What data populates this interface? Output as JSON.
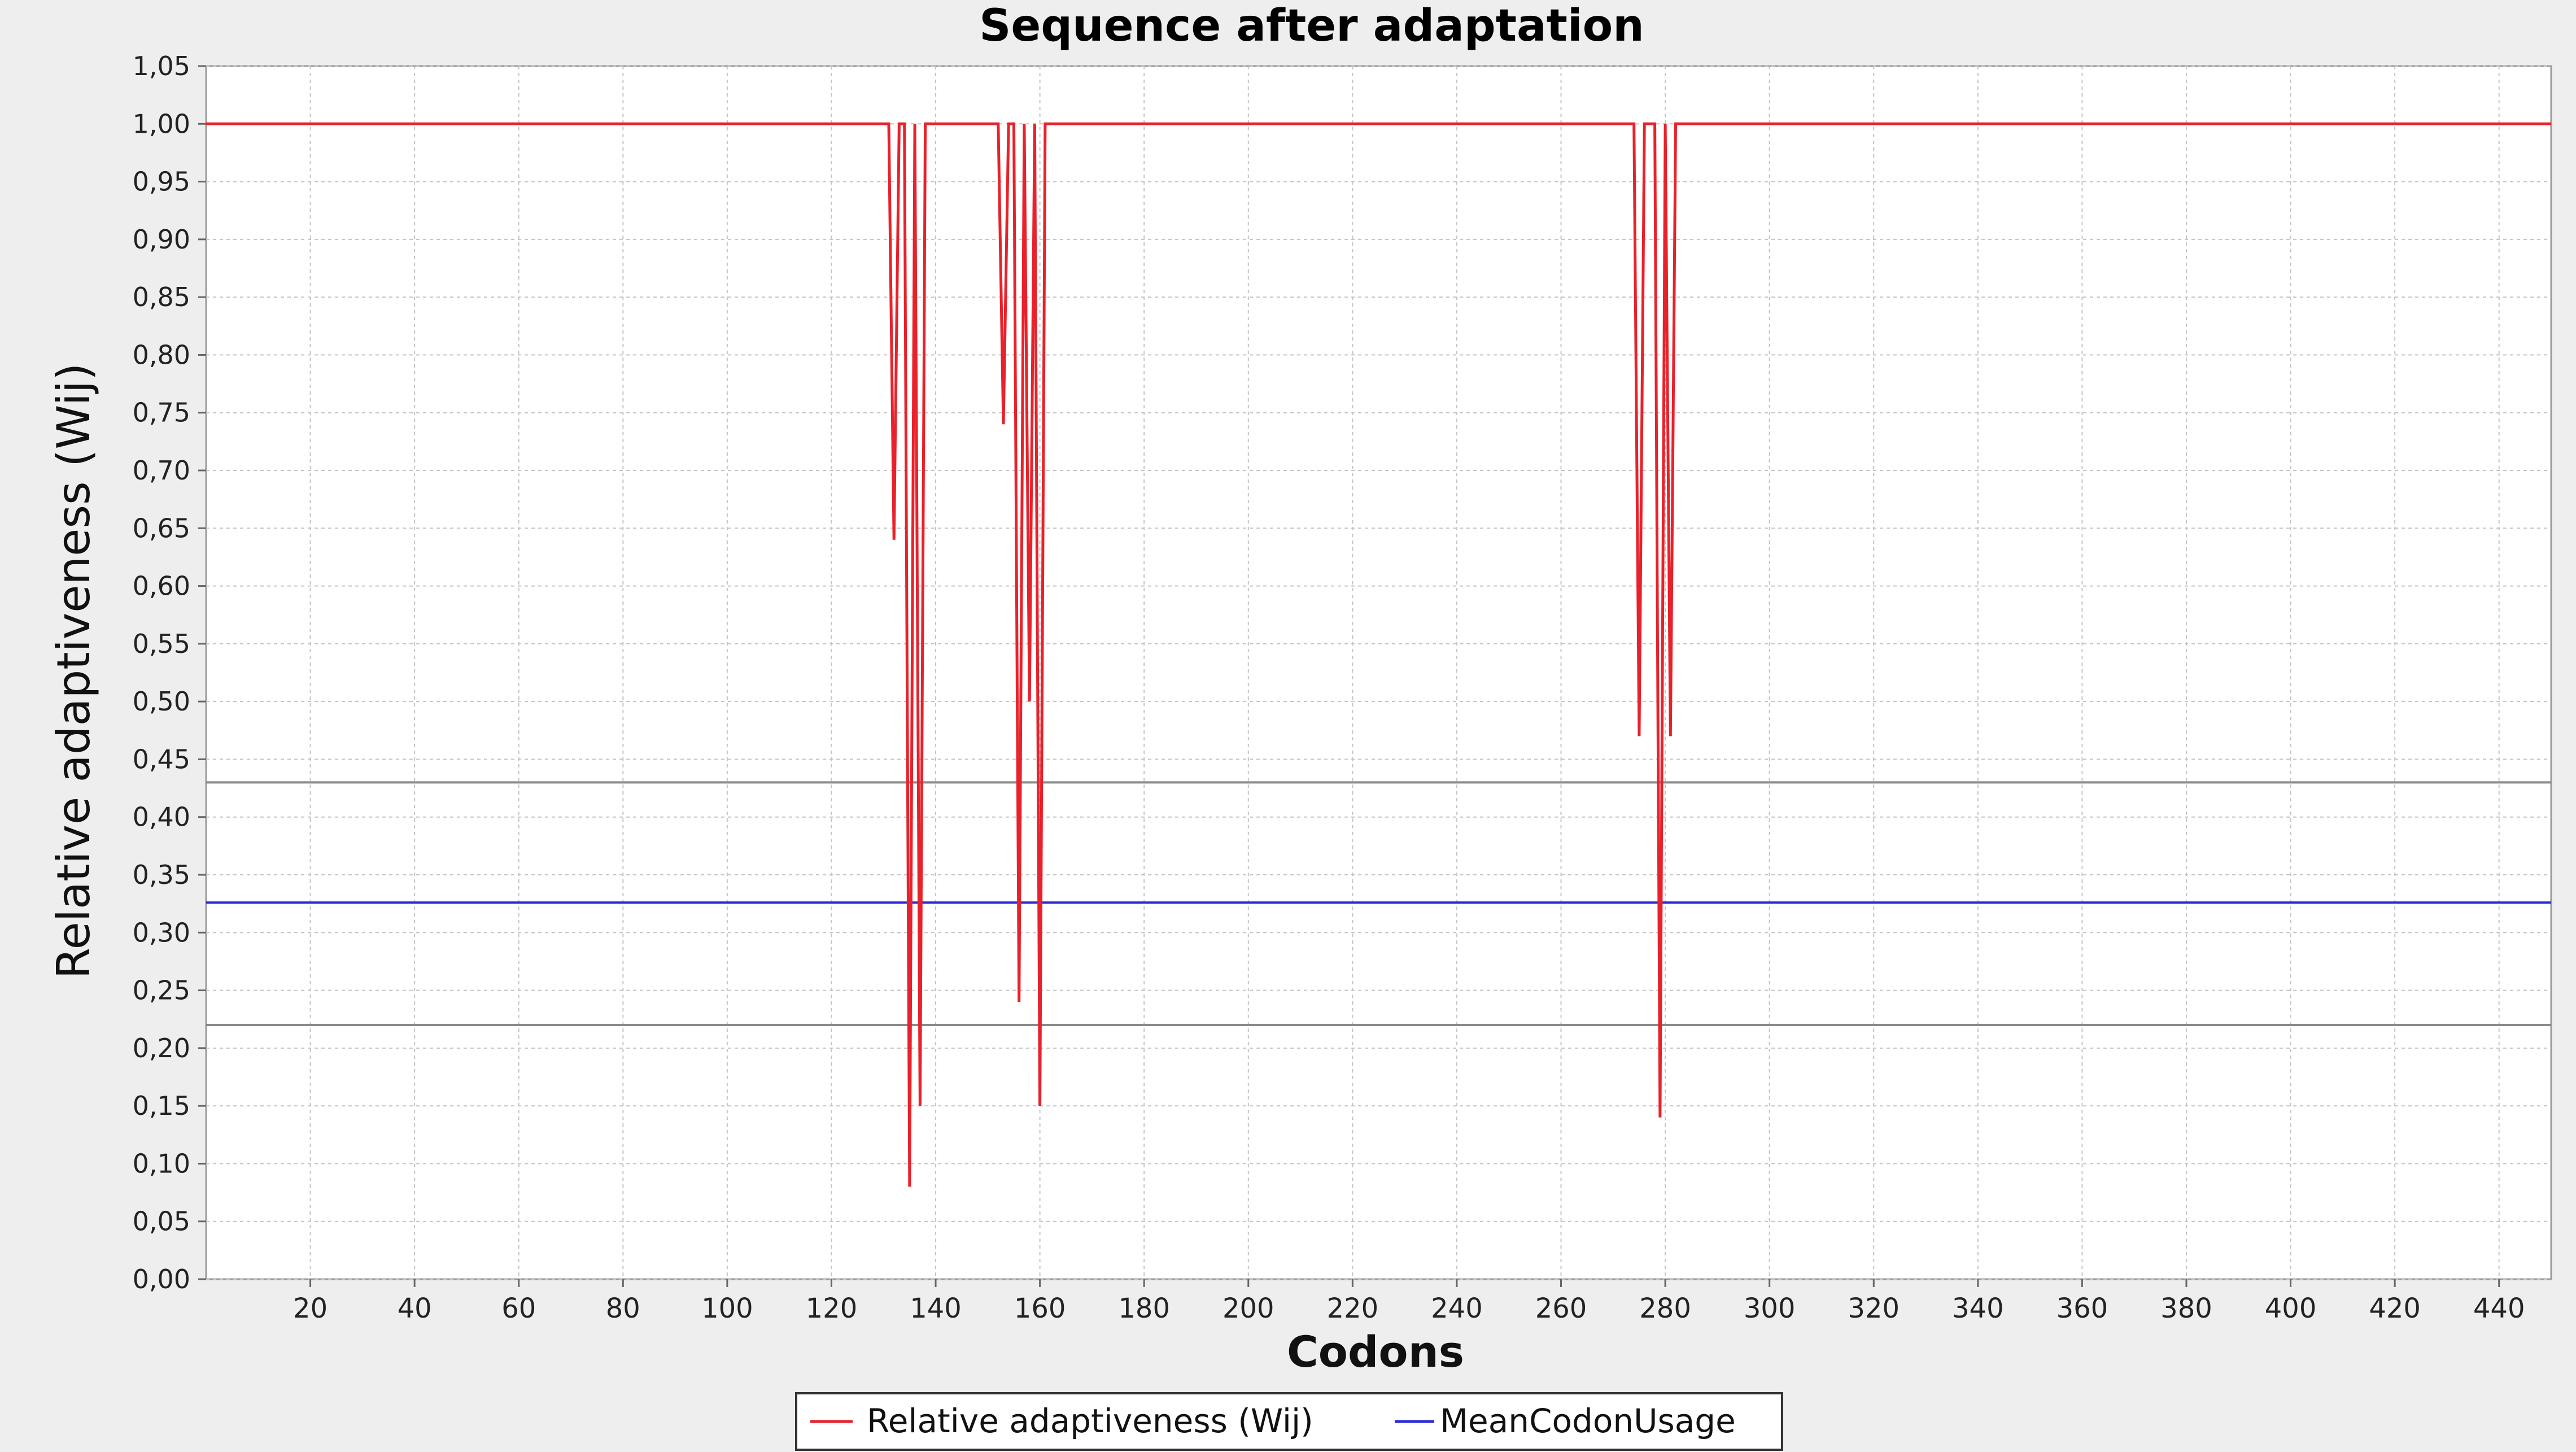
{
  "chart_data": {
    "type": "line",
    "title": "Sequence after adaptation",
    "xlabel": "Codons",
    "ylabel": "Relative adaptiveness (Wij)",
    "xlim": [
      0,
      450
    ],
    "ylim": [
      0,
      1.05
    ],
    "x_ticks": [
      20,
      40,
      60,
      80,
      100,
      120,
      140,
      160,
      180,
      200,
      220,
      240,
      260,
      280,
      300,
      320,
      340,
      360,
      380,
      400,
      420,
      440
    ],
    "y_ticks": [
      "0,00",
      "0,05",
      "0,10",
      "0,15",
      "0,20",
      "0,25",
      "0,30",
      "0,35",
      "0,40",
      "0,45",
      "0,50",
      "0,55",
      "0,60",
      "0,65",
      "0,70",
      "0,75",
      "0,80",
      "0,85",
      "0,90",
      "0,95",
      "1,00",
      "1,05"
    ],
    "grid": true,
    "legend_position": "bottom",
    "series": [
      {
        "name": "Relative adaptiveness (Wij)",
        "color": "#e8212a",
        "points": [
          [
            0,
            1.0
          ],
          [
            131,
            1.0
          ],
          [
            132,
            0.64
          ],
          [
            133,
            1.0
          ],
          [
            134,
            1.0
          ],
          [
            135,
            0.08
          ],
          [
            136,
            1.0
          ],
          [
            137,
            0.15
          ],
          [
            138,
            1.0
          ],
          [
            152,
            1.0
          ],
          [
            153,
            0.74
          ],
          [
            154,
            1.0
          ],
          [
            155,
            1.0
          ],
          [
            156,
            0.24
          ],
          [
            157,
            1.0
          ],
          [
            158,
            0.5
          ],
          [
            159,
            1.0
          ],
          [
            160,
            0.15
          ],
          [
            161,
            1.0
          ],
          [
            274,
            1.0
          ],
          [
            275,
            0.47
          ],
          [
            276,
            1.0
          ],
          [
            278,
            1.0
          ],
          [
            279,
            0.14
          ],
          [
            280,
            1.0
          ],
          [
            281,
            0.47
          ],
          [
            282,
            1.0
          ],
          [
            450,
            1.0
          ]
        ]
      },
      {
        "name": "MeanCodonUsage",
        "color": "#2b2bd6",
        "constant": 0.326
      }
    ],
    "reference_lines": [
      {
        "value": 0.43,
        "color": "#8a8a8a"
      },
      {
        "value": 0.22,
        "color": "#8a8a8a"
      }
    ]
  }
}
